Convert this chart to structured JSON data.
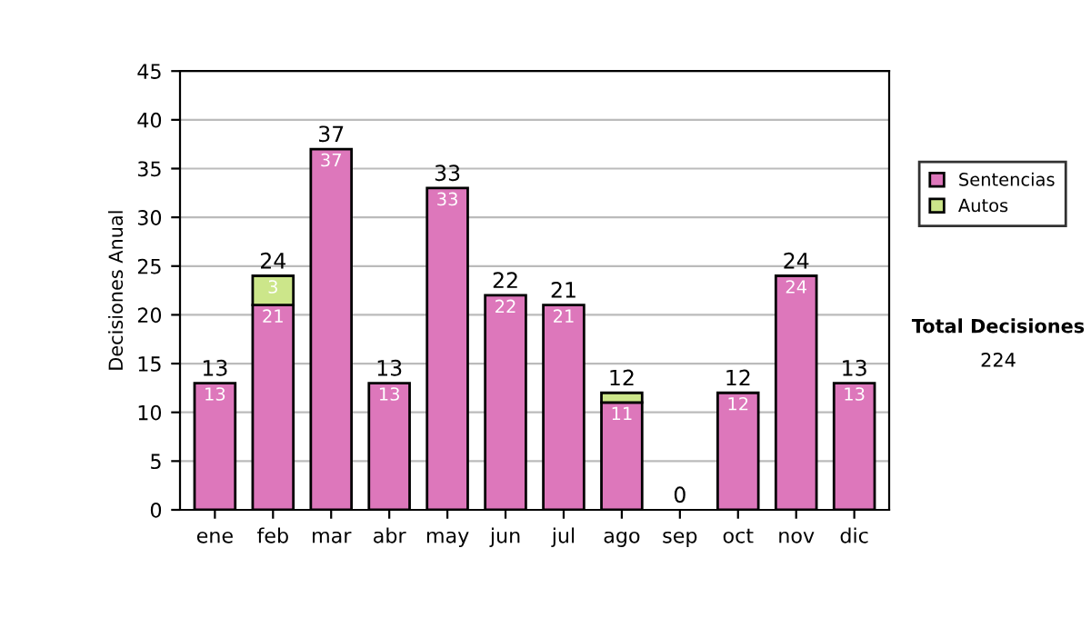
{
  "chart_data": {
    "type": "bar",
    "ylabel": "Decisiones Anual",
    "categories": [
      "ene",
      "feb",
      "mar",
      "abr",
      "may",
      "jun",
      "jul",
      "ago",
      "sep",
      "oct",
      "nov",
      "dic"
    ],
    "stacked": true,
    "series": [
      {
        "name": "Sentencias",
        "color": "#dd77bb",
        "values": [
          13,
          21,
          37,
          13,
          33,
          22,
          21,
          11,
          0,
          12,
          24,
          13
        ],
        "value_labels": [
          "13",
          "21",
          "37",
          "13",
          "33",
          "22",
          "21",
          "11",
          null,
          "12",
          "24",
          "13"
        ]
      },
      {
        "name": "Autos",
        "color": "#cce68a",
        "values": [
          0,
          3,
          0,
          0,
          0,
          0,
          0,
          1,
          0,
          0,
          0,
          0
        ],
        "value_labels": [
          null,
          "3",
          null,
          null,
          null,
          null,
          null,
          null,
          null,
          null,
          null,
          null
        ]
      }
    ],
    "totals": [
      "13",
      "24",
      "37",
      "13",
      "33",
      "22",
      "21",
      "12",
      "0",
      "12",
      "24",
      "13"
    ],
    "ylim": [
      0,
      45
    ],
    "yticks": [
      0,
      5,
      10,
      15,
      20,
      25,
      30,
      35,
      40,
      45
    ],
    "grid": "y",
    "legend": "right",
    "annotations": [
      "Total Decisiones",
      "224"
    ]
  }
}
